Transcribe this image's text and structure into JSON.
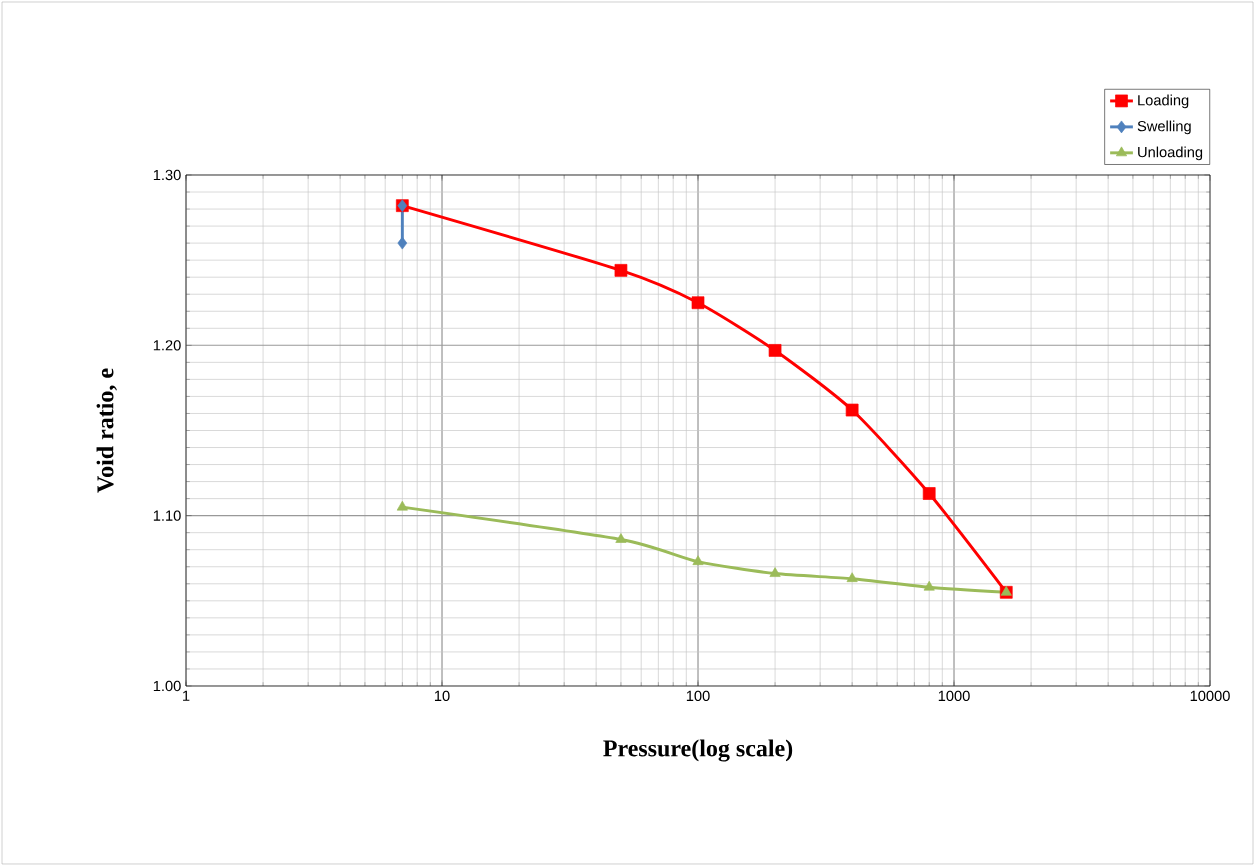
{
  "chart_data": {
    "type": "line",
    "xlabel": "Pressure(log scale)",
    "ylabel": "Void ratio, e",
    "log": "x",
    "xlim": [
      1,
      10000
    ],
    "xticks": [
      1,
      10,
      100,
      1000,
      10000
    ],
    "ylim": [
      1.0,
      1.3
    ],
    "yticks": [
      {
        "value": 1.0,
        "label": "1.00"
      },
      {
        "value": 1.1,
        "label": "1.10"
      },
      {
        "value": 1.2,
        "label": "1.20"
      },
      {
        "value": 1.3,
        "label": "1.30"
      }
    ],
    "grid": true,
    "legend": "top right",
    "series": [
      {
        "name": "Loading",
        "color": "#ff0000",
        "marker": "square",
        "x": [
          7,
          50,
          100,
          200,
          400,
          800,
          1600
        ],
        "values": [
          1.282,
          1.244,
          1.225,
          1.197,
          1.162,
          1.113,
          1.055
        ]
      },
      {
        "name": "Swelling",
        "color": "#4f81bd",
        "marker": "diamond",
        "x": [
          7,
          7
        ],
        "values": [
          1.282,
          1.26
        ]
      },
      {
        "name": "Unloading",
        "color": "#9bbb59",
        "marker": "triangle",
        "x": [
          7,
          50,
          100,
          200,
          400,
          800,
          1600
        ],
        "values": [
          1.105,
          1.086,
          1.073,
          1.066,
          1.063,
          1.058,
          1.055
        ]
      }
    ]
  }
}
